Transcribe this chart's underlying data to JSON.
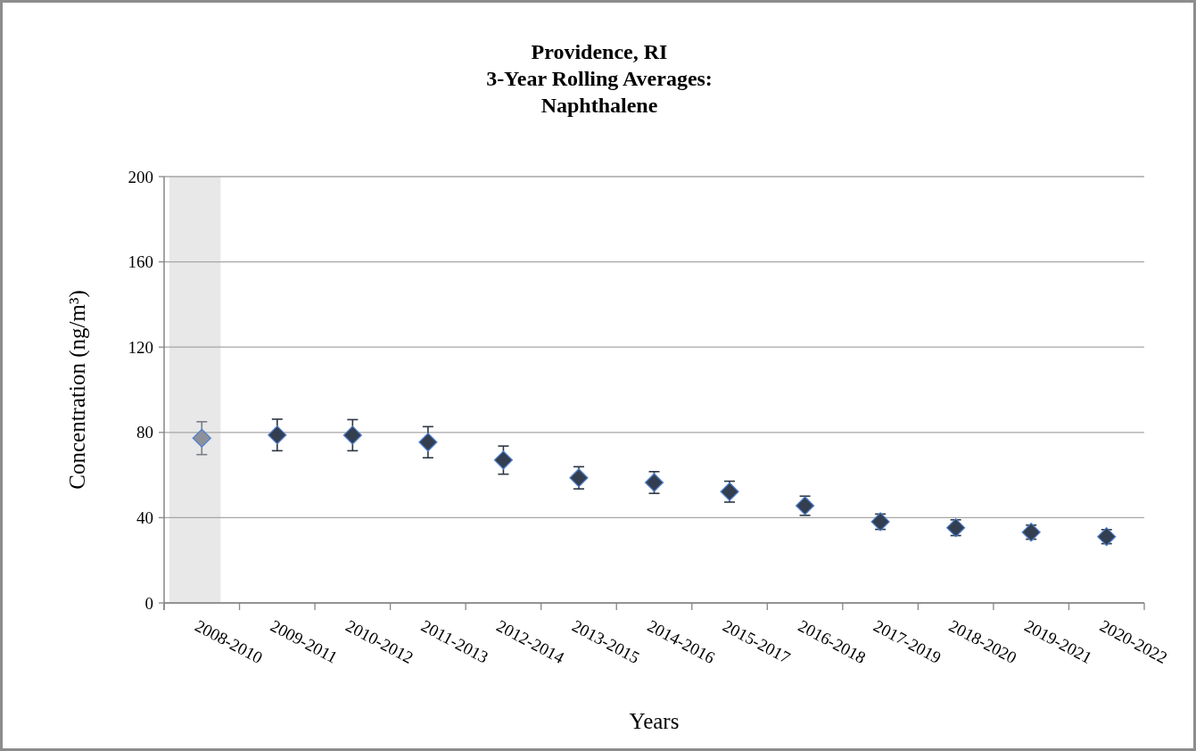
{
  "chart_data": {
    "type": "scatter",
    "title": "Providence, RI\n3-Year Rolling Averages:\nNaphthalene",
    "xlabel": "Years",
    "ylabel": "Concentration (ng/m³)",
    "categories": [
      "2008-2010",
      "2009-2011",
      "2010-2012",
      "2011-2013",
      "2012-2014",
      "2013-2015",
      "2014-2016",
      "2015-2017",
      "2016-2018",
      "2017-2019",
      "2018-2020",
      "2019-2021",
      "2020-2022"
    ],
    "values": [
      77.3,
      78.8,
      78.7,
      75.4,
      67.0,
      58.7,
      56.5,
      52.2,
      45.6,
      38.1,
      35.3,
      33.2,
      31.1
    ],
    "errors": [
      7.7,
      7.4,
      7.3,
      7.3,
      6.6,
      5.2,
      5.1,
      4.9,
      4.5,
      3.6,
      3.7,
      3.3,
      3.3
    ],
    "colors": [
      "#8c9199",
      "#333f50",
      "#333f50",
      "#333f50",
      "#333f50",
      "#333f50",
      "#333f50",
      "#333f50",
      "#333f50",
      "#333f50",
      "#333f50",
      "#333f50",
      "#333f50"
    ],
    "ylim": [
      0,
      200
    ],
    "yticks": [
      0,
      40,
      80,
      120,
      160,
      200
    ],
    "grid": "y",
    "marker": "diamond",
    "bands": [
      {
        "axis": "x",
        "from": "2008-2010",
        "to": "2008-2010",
        "color": "#e8e8e8"
      }
    ]
  }
}
